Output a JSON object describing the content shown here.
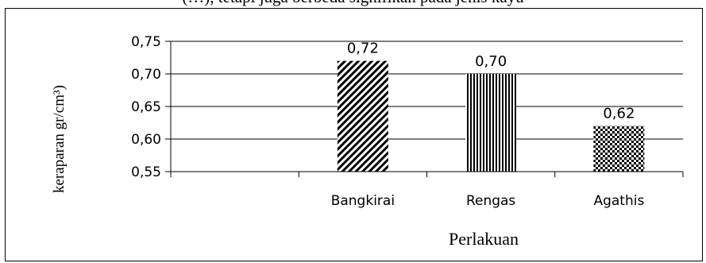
{
  "top_text": "(…),  tetapi juga berbeda signifikan pada jenis kayu",
  "chart_data": {
    "type": "bar",
    "categories": [
      "",
      "Bangkirai",
      "Rengas",
      "Agathis"
    ],
    "values": [
      null,
      0.72,
      0.7,
      0.62
    ],
    "data_labels": [
      "",
      "0,72",
      "0,70",
      "0,62"
    ],
    "title": "",
    "xlabel": "Perlakuan",
    "ylabel": "keraparan gr/cm³)",
    "ylim": [
      0.55,
      0.75
    ],
    "yticks": [
      {
        "value": 0.55,
        "label": "0,55"
      },
      {
        "value": 0.6,
        "label": "0,60"
      },
      {
        "value": 0.65,
        "label": "0,65"
      },
      {
        "value": 0.7,
        "label": "0,70"
      },
      {
        "value": 0.75,
        "label": "0,75"
      }
    ],
    "grid": true,
    "bar_patterns": [
      "",
      "diagonal-stripes",
      "vertical-stripes",
      "checkerboard"
    ],
    "bar_color": "#000000"
  }
}
